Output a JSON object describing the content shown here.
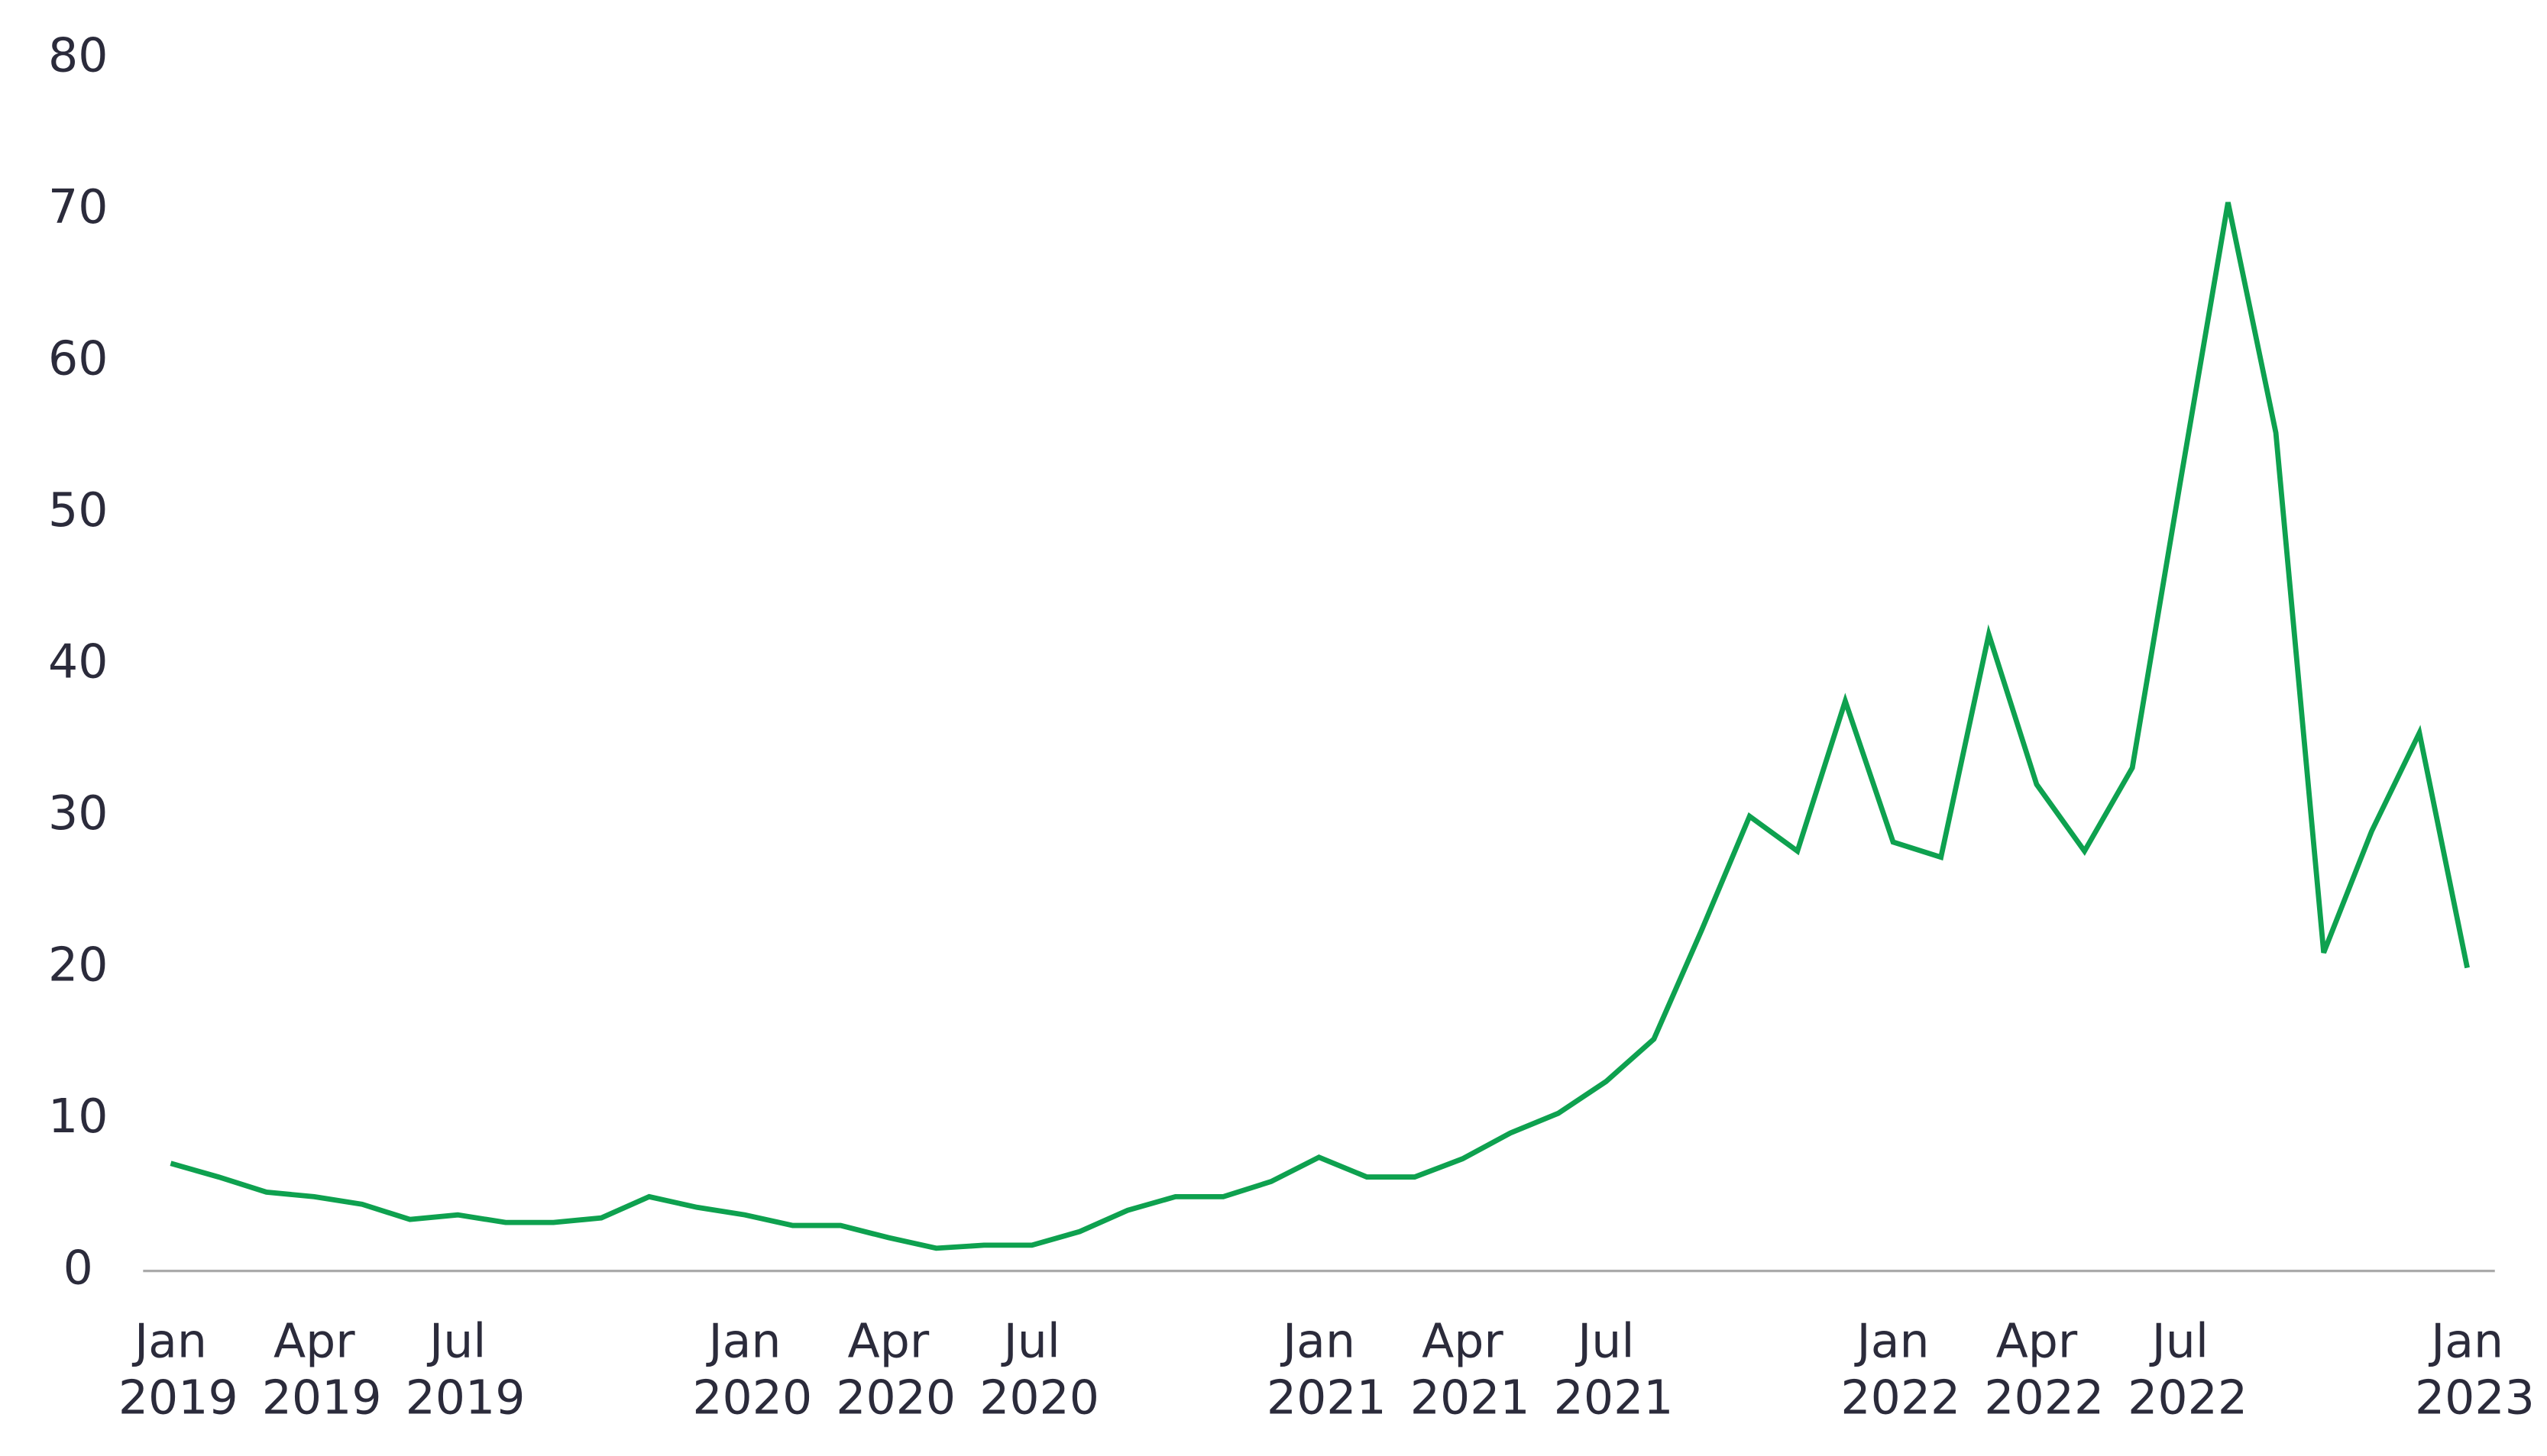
{
  "chart_data": {
    "type": "line",
    "categories": [
      "Jan 2019",
      null,
      null,
      "Apr 2019",
      null,
      null,
      "Jul 2019",
      null,
      null,
      null,
      null,
      null,
      "Jan 2020",
      null,
      null,
      "Apr 2020",
      null,
      null,
      "Jul 2020",
      null,
      null,
      null,
      null,
      null,
      "Jan 2021",
      null,
      null,
      "Apr 2021",
      null,
      null,
      "Jul 2021",
      null,
      null,
      null,
      null,
      null,
      "Jan 2022",
      null,
      null,
      "Apr 2022",
      null,
      null,
      "Jul 2022",
      null,
      null,
      null,
      null,
      null,
      "Jan 2023"
    ],
    "series": [
      {
        "color": "#0ea14f",
        "values": [
          7.1,
          6.2,
          5.2,
          4.9,
          4.4,
          3.4,
          3.7,
          3.2,
          3.2,
          3.5,
          4.9,
          4.2,
          3.7,
          3.0,
          3.0,
          2.2,
          1.5,
          1.7,
          1.7,
          2.6,
          4.0,
          4.9,
          4.9,
          5.9,
          7.5,
          6.2,
          6.2,
          7.4,
          9.1,
          10.4,
          12.5,
          15.3,
          22.5,
          30,
          27.7,
          37.6,
          28.3,
          27.3,
          42,
          32.1,
          27.7,
          33.2,
          52,
          70.5,
          55.3,
          21,
          29,
          35.5,
          20
        ]
      }
    ],
    "ylim": [
      0,
      80
    ],
    "yticks": [
      0,
      10,
      20,
      30,
      40,
      50,
      60,
      70,
      80
    ],
    "grid": false
  }
}
